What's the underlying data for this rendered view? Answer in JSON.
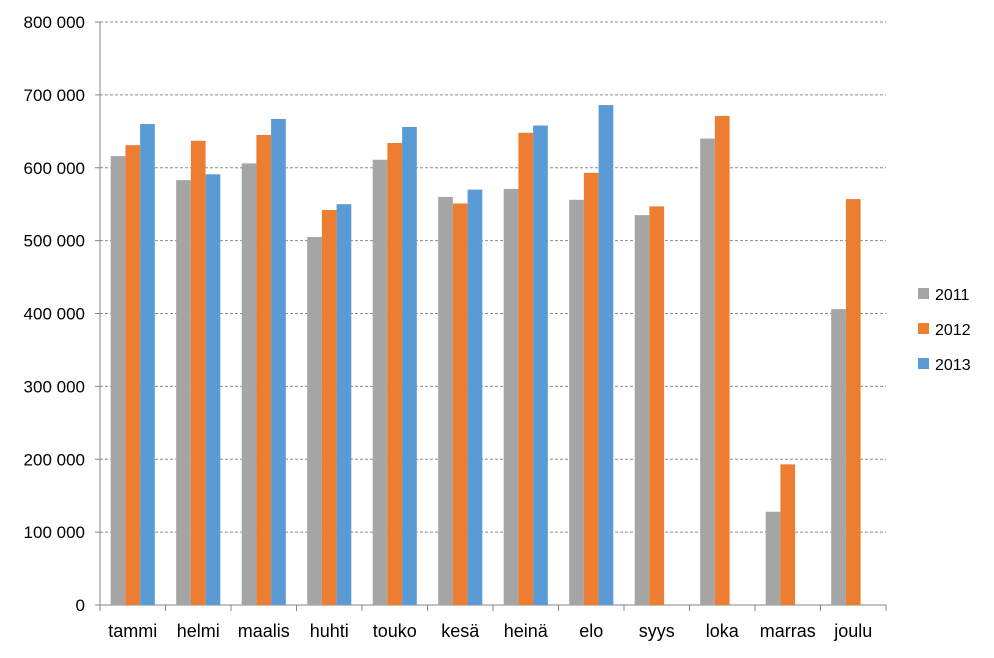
{
  "chart_data": {
    "type": "bar",
    "title": "",
    "xlabel": "",
    "ylabel": "",
    "categories": [
      "tammi",
      "helmi",
      "maalis",
      "huhti",
      "touko",
      "kesä",
      "heinä",
      "elo",
      "syys",
      "loka",
      "marras",
      "joulu"
    ],
    "series": [
      {
        "name": "2011",
        "color": "#a5a5a5",
        "values": [
          616000,
          583000,
          606000,
          505000,
          611000,
          560000,
          571000,
          556000,
          535000,
          640000,
          128000,
          406000
        ]
      },
      {
        "name": "2012",
        "color": "#ed7d31",
        "values": [
          631000,
          637000,
          645000,
          542000,
          634000,
          551000,
          648000,
          593000,
          547000,
          671000,
          193000,
          557000
        ]
      },
      {
        "name": "2013",
        "color": "#5b9bd5",
        "values": [
          660000,
          591000,
          667000,
          550000,
          656000,
          570000,
          658000,
          686000,
          null,
          null,
          null,
          null
        ]
      }
    ],
    "ylim": [
      0,
      800000
    ],
    "yticks": [
      0,
      100000,
      200000,
      300000,
      400000,
      500000,
      600000,
      700000,
      800000
    ],
    "ytick_labels": [
      "0",
      "100 000",
      "200 000",
      "300 000",
      "400 000",
      "500 000",
      "600 000",
      "700 000",
      "800 000"
    ],
    "grid": true,
    "legend_position": "right"
  }
}
